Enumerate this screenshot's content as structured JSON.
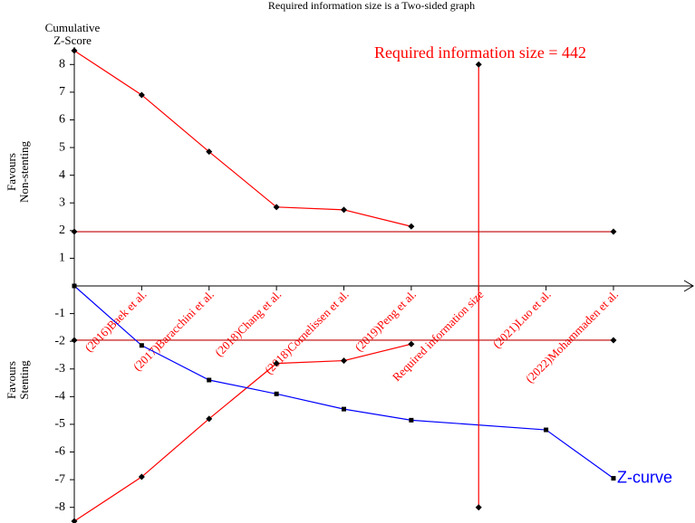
{
  "chart_data": {
    "type": "line",
    "title": "Required information size is a Two-sided graph",
    "y_label": [
      "Cumulative",
      "Z-Score"
    ],
    "upper_label": [
      "Favours",
      "Non-stenting"
    ],
    "lower_label": [
      "Favours",
      "Stenting"
    ],
    "annotation": "Required information size = 442",
    "categories": [
      null,
      "(2016)Baek et al.",
      "(2017)Baracchini et al.",
      "(2018)Chang et al.",
      "(2018)Cornelissen et al.",
      "(2019)Peng et al.",
      "Required information size",
      "(2021)Luo et al.",
      "(2022)Mohammaden et al."
    ],
    "xlim": [
      0,
      8
    ],
    "ylim": [
      -8.5,
      8.5
    ],
    "yticks": [
      8,
      7,
      6,
      5,
      4,
      3,
      2,
      1,
      -1,
      -2,
      -3,
      -4,
      -5,
      -6,
      -7,
      -8
    ],
    "series": [
      {
        "color": "#ff0000",
        "marker": "diamond",
        "x": [
          0,
          1,
          2,
          3,
          4,
          5
        ],
        "values": [
          8.5,
          6.9,
          4.85,
          2.85,
          2.75,
          2.15
        ]
      },
      {
        "color": "#ff0000",
        "marker": "diamond",
        "x": [
          0,
          1,
          2,
          3,
          4,
          5
        ],
        "values": [
          -8.5,
          -6.9,
          -4.8,
          -2.8,
          -2.7,
          -2.1
        ]
      },
      {
        "color": "#c00000",
        "marker": "diamond",
        "x": [
          0,
          8
        ],
        "values": [
          1.96,
          1.96
        ]
      },
      {
        "color": "#c00000",
        "marker": "diamond",
        "x": [
          0,
          8
        ],
        "values": [
          -1.96,
          -1.96
        ]
      },
      {
        "name": "Z-curve",
        "color": "#0000ff",
        "marker": "square",
        "x": [
          0,
          1,
          2,
          3,
          4,
          5,
          7,
          8
        ],
        "values": [
          0,
          -2.15,
          -3.4,
          -3.9,
          -4.45,
          -4.85,
          -5.2,
          -6.95
        ]
      }
    ],
    "vertical_line": {
      "x": 6,
      "values": [
        8,
        -8
      ],
      "color": "#ff0000",
      "marker": "diamond"
    }
  }
}
